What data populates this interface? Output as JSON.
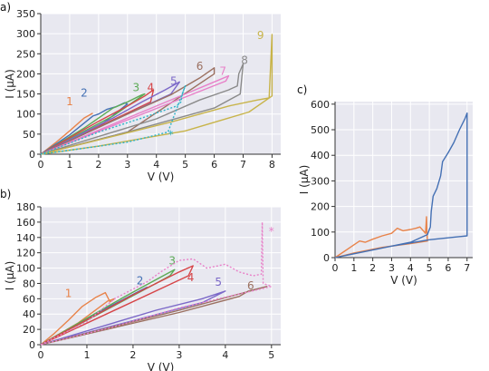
{
  "chart_data": [
    {
      "panel": "a)",
      "type": "line",
      "xlabel": "V (V)",
      "ylabel": "I (µA)",
      "xlim": [
        0,
        8.3
      ],
      "ylim": [
        0,
        350
      ],
      "xticks": [
        0,
        1,
        2,
        3,
        4,
        5,
        6,
        7,
        8
      ],
      "yticks": [
        0,
        50,
        100,
        150,
        200,
        250,
        300,
        350
      ],
      "grid": true,
      "background": "#e8e8f0",
      "series": [
        {
          "name": "1",
          "color": "#e8834a",
          "dashed": false,
          "label_pos": [
            1.0,
            122
          ],
          "x": [
            0,
            0.5,
            1.0,
            1.5,
            1.8
          ],
          "y": [
            0,
            28,
            58,
            90,
            102
          ]
        },
        {
          "name": "2",
          "color": "#4470b4",
          "dashed": false,
          "label_pos": [
            1.5,
            143
          ],
          "x": [
            0,
            1.0,
            1.8,
            2.0,
            2.3,
            2.6,
            2.9,
            3.0,
            2.0,
            0
          ],
          "y": [
            0,
            48,
            95,
            100,
            112,
            118,
            128,
            125,
            68,
            0
          ]
        },
        {
          "name": "3",
          "color": "#5cab56",
          "dashed": false,
          "label_pos": [
            3.3,
            157
          ],
          "x": [
            0,
            1.5,
            2.5,
            3.0,
            3.5,
            3.6,
            2.5,
            0
          ],
          "y": [
            0,
            65,
            115,
            130,
            148,
            150,
            95,
            0
          ]
        },
        {
          "name": "4",
          "color": "#d64548",
          "dashed": false,
          "label_pos": [
            3.8,
            157
          ],
          "x": [
            0,
            2.0,
            3.0,
            3.6,
            3.9,
            3.8,
            0
          ],
          "y": [
            0,
            82,
            120,
            145,
            160,
            130,
            0
          ]
        },
        {
          "name": "5",
          "color": "#7b68c8",
          "dashed": false,
          "label_pos": [
            4.6,
            173
          ],
          "x": [
            0,
            2.5,
            3.5,
            4.3,
            4.8,
            4.5,
            0
          ],
          "y": [
            0,
            90,
            130,
            160,
            180,
            150,
            0
          ]
        },
        {
          "name": "6",
          "color": "#9b7060",
          "dashed": false,
          "label_pos": [
            5.5,
            210
          ],
          "x": [
            0,
            3.0,
            4.5,
            5.5,
            6.0,
            6.0,
            3.0,
            0
          ],
          "y": [
            0,
            100,
            148,
            190,
            215,
            200,
            55,
            0
          ]
        },
        {
          "name": "7",
          "color": "#e880c8",
          "dashed": false,
          "label_pos": [
            6.3,
            198
          ],
          "x": [
            0,
            3.5,
            5.0,
            6.0,
            6.5,
            6.4,
            0
          ],
          "y": [
            0,
            105,
            150,
            180,
            195,
            182,
            0
          ]
        },
        {
          "name": "8",
          "color": "#8a8a8a",
          "dashed": false,
          "label_pos": [
            7.05,
            225
          ],
          "x": [
            0,
            4.0,
            5.5,
            6.5,
            6.8,
            6.85,
            7.0,
            6.9,
            6.0,
            3.0,
            0
          ],
          "y": [
            0,
            88,
            135,
            160,
            170,
            200,
            225,
            150,
            115,
            55,
            0
          ]
        },
        {
          "name": "9",
          "color": "#c8b44a",
          "dashed": false,
          "label_pos": [
            7.6,
            287
          ],
          "x": [
            0,
            4.5,
            6.5,
            7.5,
            7.9,
            8.0,
            8.0,
            7.2,
            5.0,
            2.0,
            0
          ],
          "y": [
            0,
            80,
            120,
            135,
            140,
            298,
            145,
            105,
            58,
            20,
            0
          ]
        },
        {
          "name": "*",
          "color": "#2db3c8",
          "dashed": true,
          "label_pos": [
            4.5,
            40
          ],
          "x": [
            0,
            2.0,
            3.5,
            4.3,
            4.7,
            4.85,
            4.9,
            5.0,
            4.4,
            3.0,
            1.5,
            0
          ],
          "y": [
            0,
            55,
            90,
            110,
            120,
            130,
            150,
            170,
            55,
            30,
            15,
            0
          ]
        }
      ]
    },
    {
      "panel": "b)",
      "type": "line",
      "xlabel": "V (V)",
      "ylabel": "I (µA)",
      "xlim": [
        0,
        5.2
      ],
      "ylim": [
        0,
        180
      ],
      "xticks": [
        0,
        1,
        2,
        3,
        4,
        5
      ],
      "yticks": [
        0,
        20,
        40,
        60,
        80,
        100,
        120,
        140,
        160,
        180
      ],
      "grid": true,
      "background": "#e8e8f0",
      "series": [
        {
          "name": "1",
          "color": "#e8834a",
          "dashed": false,
          "label_pos": [
            0.6,
            62
          ],
          "x": [
            0,
            0.3,
            0.6,
            0.9,
            1.2,
            1.4,
            1.5,
            1.6,
            1.45,
            0.8,
            0
          ],
          "y": [
            0,
            15,
            32,
            50,
            62,
            68,
            56,
            60,
            57,
            28,
            0
          ]
        },
        {
          "name": "2",
          "color": "#4470b4",
          "dashed": false,
          "label_pos": [
            2.15,
            79
          ],
          "x": [
            0,
            1.5,
            2.2,
            2.3,
            0
          ],
          "y": [
            0,
            50,
            72,
            75,
            0
          ]
        },
        {
          "name": "3",
          "color": "#5cab56",
          "dashed": false,
          "label_pos": [
            2.85,
            105
          ],
          "x": [
            0,
            1.8,
            2.5,
            2.9,
            2.8,
            2.5,
            0
          ],
          "y": [
            0,
            62,
            85,
            98,
            90,
            80,
            0
          ]
        },
        {
          "name": "4",
          "color": "#d64548",
          "dashed": false,
          "label_pos": [
            3.25,
            83
          ],
          "x": [
            0,
            2.0,
            3.0,
            3.3,
            3.2,
            0
          ],
          "y": [
            0,
            65,
            95,
            103,
            90,
            0
          ]
        },
        {
          "name": "5",
          "color": "#7b68c8",
          "dashed": false,
          "label_pos": [
            3.85,
            77
          ],
          "x": [
            0,
            2.5,
            3.5,
            4.0,
            3.5,
            0
          ],
          "y": [
            0,
            45,
            60,
            70,
            55,
            0
          ]
        },
        {
          "name": "6",
          "color": "#9b7060",
          "dashed": false,
          "label_pos": [
            4.55,
            72
          ],
          "x": [
            0,
            3.0,
            4.3,
            4.5,
            4.9,
            3.0,
            0
          ],
          "y": [
            0,
            42,
            63,
            70,
            76,
            45,
            0
          ]
        },
        {
          "name": "*",
          "color": "#e880c8",
          "dashed": true,
          "label_pos": [
            5.0,
            143
          ],
          "x": [
            0,
            1.0,
            1.6,
            2.3,
            2.6,
            3.0,
            3.3,
            3.6,
            4.0,
            4.3,
            4.6,
            4.78,
            4.8,
            4.82,
            5.0,
            3.0,
            1.5,
            0
          ],
          "y": [
            0,
            30,
            60,
            82,
            95,
            110,
            112,
            100,
            105,
            95,
            90,
            92,
            160,
            80,
            76,
            48,
            22,
            0
          ]
        }
      ]
    },
    {
      "panel": "c)",
      "type": "line",
      "xlabel": "V (V)",
      "ylabel": "I (µA)",
      "xlim": [
        0,
        7.3
      ],
      "ylim": [
        0,
        610
      ],
      "xticks": [
        0,
        1,
        2,
        3,
        4,
        5,
        6,
        7
      ],
      "yticks": [
        0,
        100,
        200,
        300,
        400,
        500,
        600
      ],
      "grid": true,
      "background": "#e8e8f0",
      "series": [
        {
          "name": "",
          "color": "#e8834a",
          "dashed": false,
          "x": [
            0,
            0.5,
            1.0,
            1.3,
            1.6,
            2.0,
            2.5,
            3.0,
            3.3,
            3.6,
            4.0,
            4.3,
            4.5,
            4.8,
            4.85,
            4.87,
            4.9,
            4.0,
            2.5,
            1.0,
            0
          ],
          "y": [
            0,
            25,
            50,
            65,
            60,
            72,
            85,
            95,
            115,
            105,
            110,
            115,
            120,
            95,
            160,
            100,
            65,
            55,
            40,
            18,
            0
          ]
        },
        {
          "name": "",
          "color": "#4470b4",
          "dashed": false,
          "x": [
            0,
            2.0,
            4.0,
            4.9,
            5.05,
            5.1,
            5.2,
            5.4,
            5.6,
            5.7,
            6.0,
            6.3,
            6.6,
            6.9,
            7.0,
            7.0,
            5.0,
            3.0,
            1.0,
            0
          ],
          "y": [
            0,
            30,
            60,
            90,
            120,
            180,
            240,
            270,
            320,
            375,
            410,
            450,
            500,
            545,
            565,
            85,
            70,
            45,
            15,
            0
          ]
        }
      ]
    }
  ]
}
